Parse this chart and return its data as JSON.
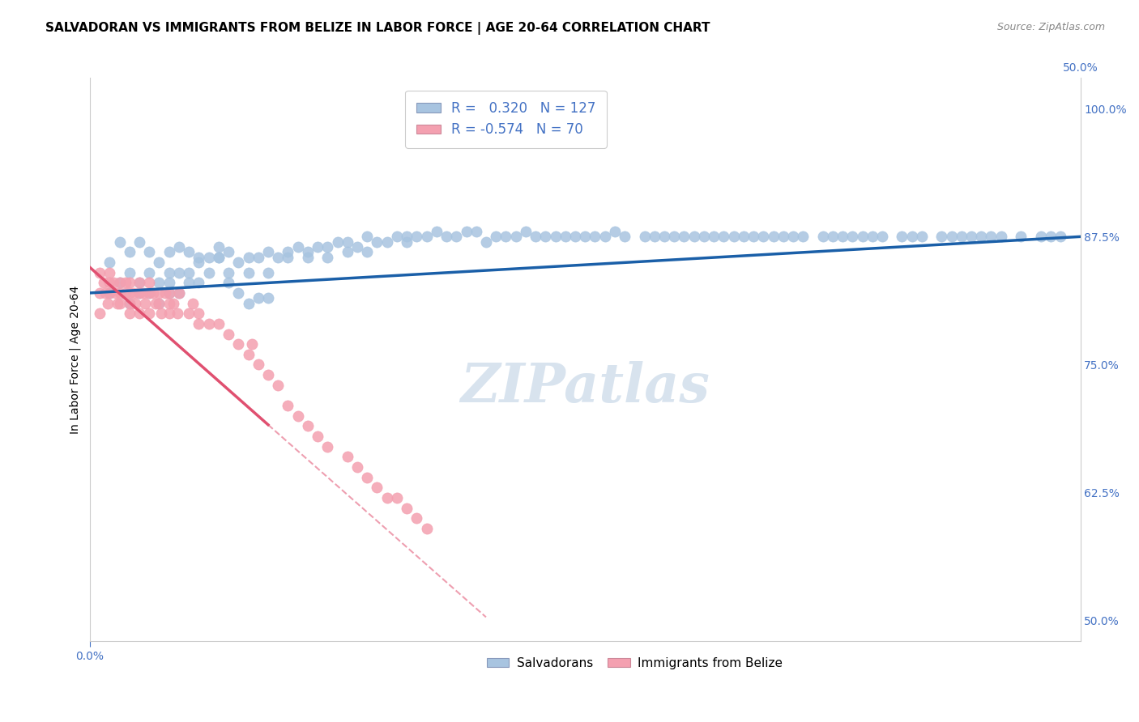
{
  "title": "SALVADORAN VS IMMIGRANTS FROM BELIZE IN LABOR FORCE | AGE 20-64 CORRELATION CHART",
  "source": "Source: ZipAtlas.com",
  "ylabel": "In Labor Force | Age 20-64",
  "right_ytick_labels": [
    "100.0%",
    "87.5%",
    "75.0%",
    "62.5%",
    "50.0%"
  ],
  "right_ytick_values": [
    1.0,
    0.875,
    0.75,
    0.625,
    0.5
  ],
  "xlim": [
    0.0,
    0.5
  ],
  "ylim": [
    0.48,
    1.03
  ],
  "blue_R": 0.32,
  "blue_N": 127,
  "pink_R": -0.574,
  "pink_N": 70,
  "blue_color": "#a8c4e0",
  "pink_color": "#f4a0b0",
  "blue_line_color": "#1a5fa8",
  "pink_line_color": "#e05070",
  "watermark": "ZIPatlas",
  "legend_label_blue": "Salvadorans",
  "legend_label_pink": "Immigrants from Belize",
  "blue_scatter_x": [
    0.01,
    0.015,
    0.02,
    0.02,
    0.025,
    0.025,
    0.03,
    0.03,
    0.035,
    0.035,
    0.04,
    0.04,
    0.04,
    0.045,
    0.045,
    0.05,
    0.05,
    0.055,
    0.055,
    0.06,
    0.065,
    0.065,
    0.07,
    0.07,
    0.075,
    0.08,
    0.08,
    0.085,
    0.09,
    0.09,
    0.095,
    0.1,
    0.1,
    0.105,
    0.11,
    0.11,
    0.115,
    0.12,
    0.12,
    0.125,
    0.13,
    0.13,
    0.135,
    0.14,
    0.14,
    0.145,
    0.15,
    0.155,
    0.16,
    0.16,
    0.165,
    0.17,
    0.175,
    0.18,
    0.185,
    0.19,
    0.195,
    0.2,
    0.205,
    0.21,
    0.215,
    0.22,
    0.225,
    0.23,
    0.235,
    0.24,
    0.245,
    0.25,
    0.255,
    0.26,
    0.265,
    0.27,
    0.28,
    0.285,
    0.29,
    0.295,
    0.3,
    0.305,
    0.31,
    0.315,
    0.32,
    0.325,
    0.33,
    0.335,
    0.34,
    0.345,
    0.35,
    0.355,
    0.36,
    0.37,
    0.375,
    0.38,
    0.385,
    0.39,
    0.395,
    0.4,
    0.41,
    0.415,
    0.42,
    0.43,
    0.435,
    0.44,
    0.445,
    0.45,
    0.455,
    0.46,
    0.47,
    0.48,
    0.485,
    0.49,
    0.01,
    0.015,
    0.02,
    0.025,
    0.03,
    0.035,
    0.04,
    0.045,
    0.05,
    0.055,
    0.06,
    0.065,
    0.07,
    0.075,
    0.08,
    0.085,
    0.09
  ],
  "blue_scatter_y": [
    0.82,
    0.83,
    0.84,
    0.81,
    0.83,
    0.82,
    0.84,
    0.82,
    0.83,
    0.81,
    0.84,
    0.82,
    0.83,
    0.84,
    0.82,
    0.84,
    0.83,
    0.85,
    0.83,
    0.84,
    0.855,
    0.865,
    0.86,
    0.84,
    0.85,
    0.855,
    0.84,
    0.855,
    0.86,
    0.84,
    0.855,
    0.855,
    0.86,
    0.865,
    0.86,
    0.855,
    0.865,
    0.865,
    0.855,
    0.87,
    0.87,
    0.86,
    0.865,
    0.875,
    0.86,
    0.87,
    0.87,
    0.875,
    0.875,
    0.87,
    0.875,
    0.875,
    0.88,
    0.875,
    0.875,
    0.88,
    0.88,
    0.87,
    0.875,
    0.875,
    0.875,
    0.88,
    0.875,
    0.875,
    0.875,
    0.875,
    0.875,
    0.875,
    0.875,
    0.875,
    0.88,
    0.875,
    0.875,
    0.875,
    0.875,
    0.875,
    0.875,
    0.875,
    0.875,
    0.875,
    0.875,
    0.875,
    0.875,
    0.875,
    0.875,
    0.875,
    0.875,
    0.875,
    0.875,
    0.875,
    0.875,
    0.875,
    0.875,
    0.875,
    0.875,
    0.875,
    0.875,
    0.875,
    0.875,
    0.875,
    0.875,
    0.875,
    0.875,
    0.875,
    0.875,
    0.875,
    0.875,
    0.875,
    0.875,
    0.875,
    0.85,
    0.87,
    0.86,
    0.87,
    0.86,
    0.85,
    0.86,
    0.865,
    0.86,
    0.855,
    0.855,
    0.855,
    0.83,
    0.82,
    0.81,
    0.815,
    0.815
  ],
  "pink_scatter_x": [
    0.005,
    0.005,
    0.005,
    0.007,
    0.008,
    0.009,
    0.01,
    0.01,
    0.01,
    0.012,
    0.013,
    0.014,
    0.015,
    0.015,
    0.015,
    0.018,
    0.018,
    0.02,
    0.02,
    0.02,
    0.02,
    0.022,
    0.023,
    0.025,
    0.025,
    0.025,
    0.027,
    0.028,
    0.03,
    0.03,
    0.03,
    0.032,
    0.033,
    0.035,
    0.035,
    0.036,
    0.038,
    0.04,
    0.04,
    0.04,
    0.042,
    0.044,
    0.045,
    0.05,
    0.052,
    0.055,
    0.055,
    0.06,
    0.065,
    0.07,
    0.075,
    0.08,
    0.082,
    0.085,
    0.09,
    0.095,
    0.1,
    0.105,
    0.11,
    0.115,
    0.12,
    0.13,
    0.135,
    0.14,
    0.145,
    0.15,
    0.155,
    0.16,
    0.165,
    0.17
  ],
  "pink_scatter_y": [
    0.84,
    0.82,
    0.8,
    0.83,
    0.82,
    0.81,
    0.84,
    0.83,
    0.82,
    0.83,
    0.82,
    0.81,
    0.83,
    0.82,
    0.81,
    0.83,
    0.82,
    0.83,
    0.82,
    0.81,
    0.8,
    0.82,
    0.81,
    0.83,
    0.82,
    0.8,
    0.82,
    0.81,
    0.83,
    0.82,
    0.8,
    0.82,
    0.81,
    0.82,
    0.81,
    0.8,
    0.82,
    0.82,
    0.81,
    0.8,
    0.81,
    0.8,
    0.82,
    0.8,
    0.81,
    0.8,
    0.79,
    0.79,
    0.79,
    0.78,
    0.77,
    0.76,
    0.77,
    0.75,
    0.74,
    0.73,
    0.71,
    0.7,
    0.69,
    0.68,
    0.67,
    0.66,
    0.65,
    0.64,
    0.63,
    0.62,
    0.62,
    0.61,
    0.6,
    0.59
  ],
  "grid_color": "#cccccc",
  "background_color": "#ffffff",
  "title_fontsize": 11,
  "axis_label_fontsize": 10,
  "tick_label_fontsize": 10,
  "watermark_fontsize": 48,
  "watermark_color": "#c8d8e8",
  "source_color": "#888888"
}
